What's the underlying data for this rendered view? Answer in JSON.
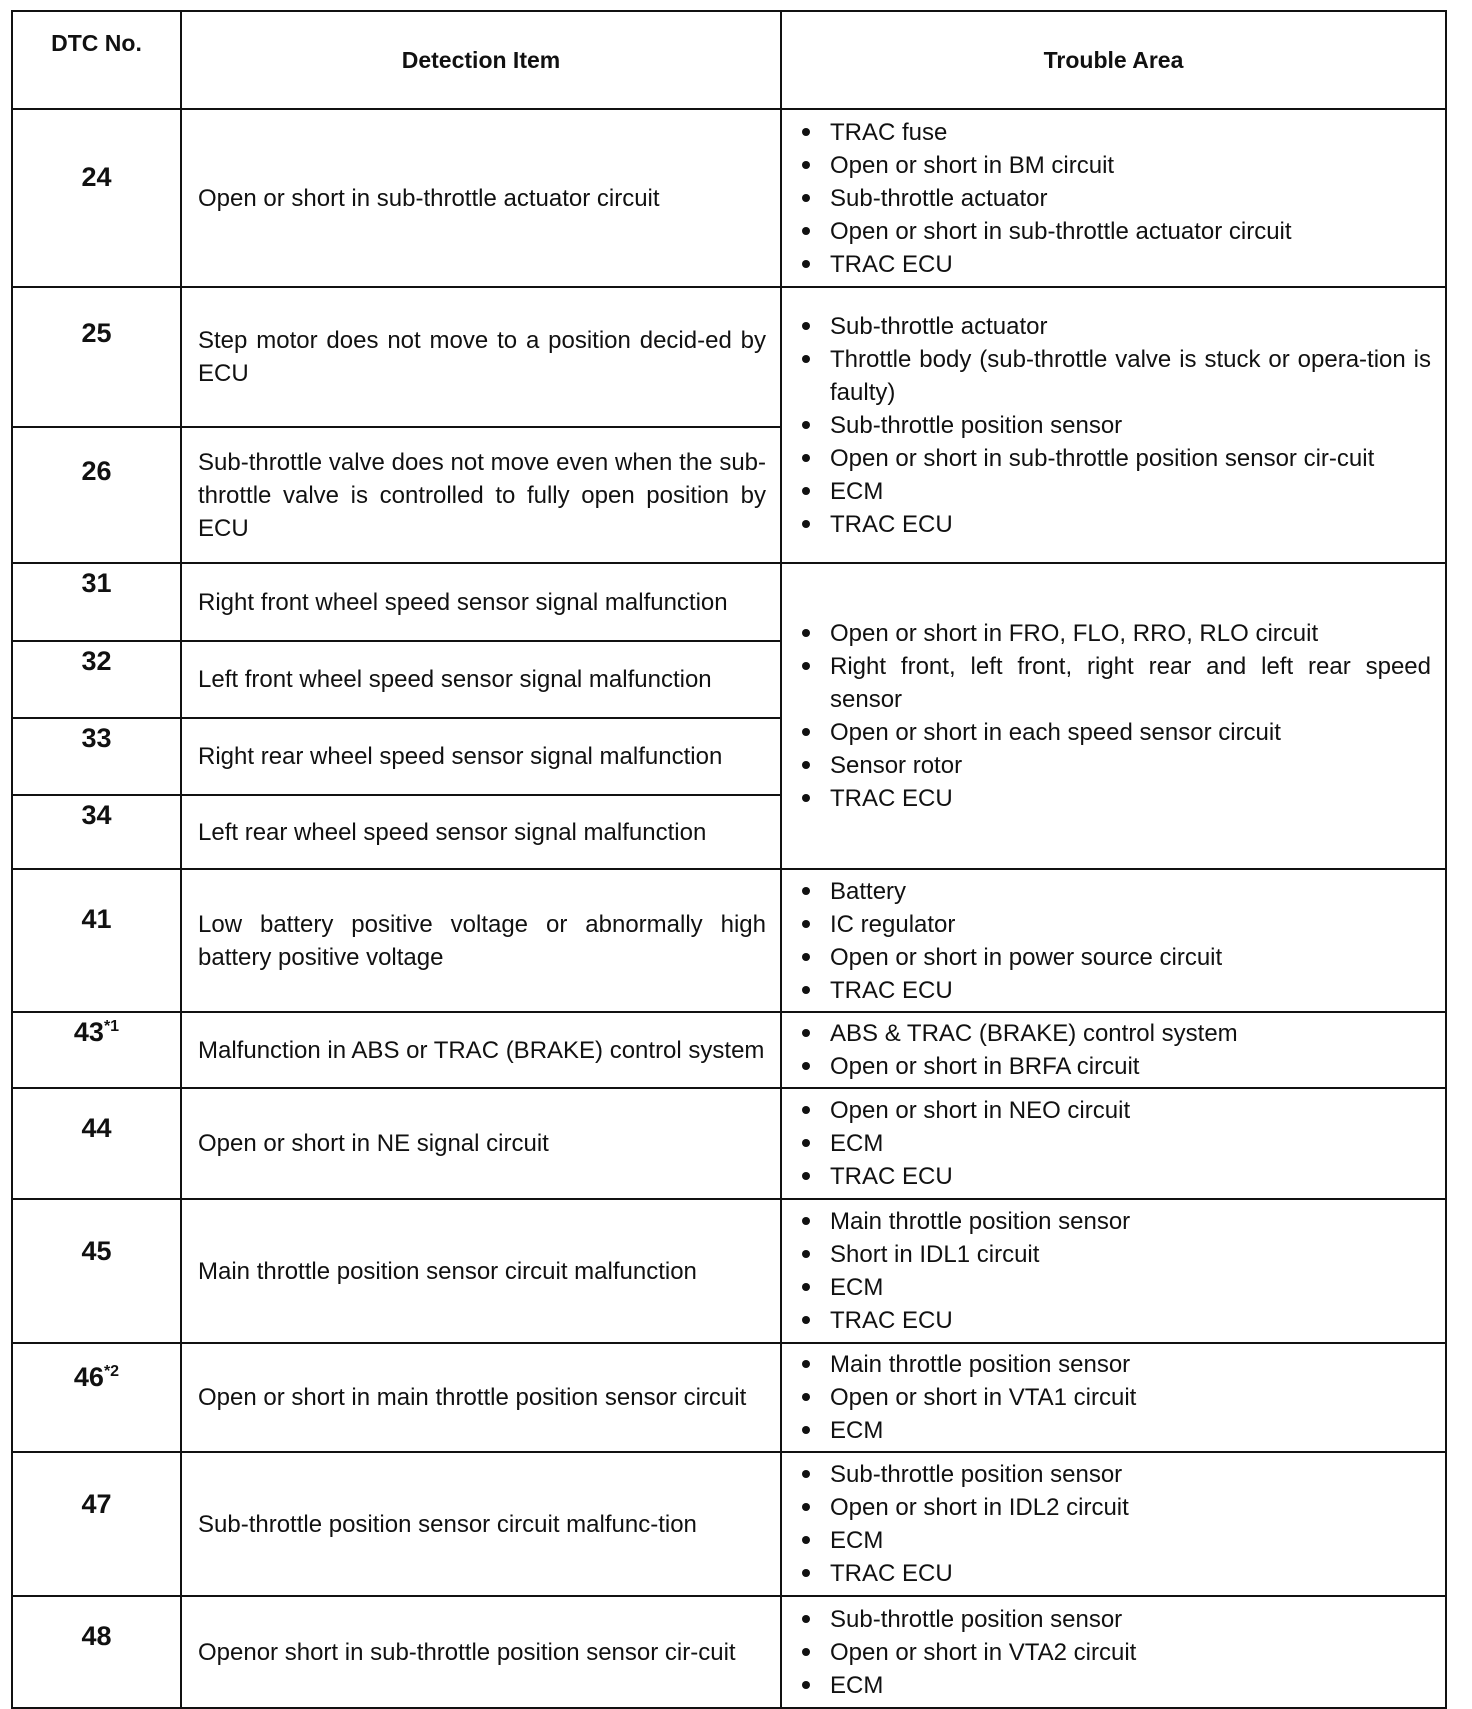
{
  "headers": {
    "dtc": "DTC No.",
    "item": "Detection Item",
    "area": "Trouble Area"
  },
  "rows": [
    {
      "dtc": "24",
      "item": "Open or short in sub-throttle actuator circuit",
      "area": [
        "TRAC fuse",
        "Open or short in BM circuit",
        "Sub-throttle actuator",
        "Open or short in sub-throttle actuator circuit",
        "TRAC ECU"
      ],
      "area_rows": 1
    },
    {
      "dtc": "25",
      "item": "Step motor does not move to a position decid-ed by ECU",
      "area": [
        "Sub-throttle actuator",
        "Throttle body (sub-throttle valve is stuck or opera-tion is faulty)",
        "Sub-throttle position sensor",
        "Open or short in sub-throttle position sensor cir-cuit",
        "ECM",
        "TRAC ECU"
      ],
      "area_rows": 2
    },
    {
      "dtc": "26",
      "item": "Sub-throttle valve does not move even when the sub-throttle valve is controlled to fully open position by ECU"
    },
    {
      "dtc": "31",
      "item": "Right front wheel speed sensor signal malfunction",
      "area": [
        "Open or short in FRO, FLO, RRO, RLO circuit",
        "Right front, left front, right rear and left rear speed sensor",
        "Open or short in each speed sensor circuit",
        "Sensor rotor",
        "TRAC ECU"
      ],
      "area_rows": 4
    },
    {
      "dtc": "32",
      "item": "Left front wheel speed sensor signal malfunction"
    },
    {
      "dtc": "33",
      "item": "Right rear wheel speed sensor signal malfunction"
    },
    {
      "dtc": "34",
      "item": "Left rear wheel speed sensor signal malfunction"
    },
    {
      "dtc": "41",
      "item": "Low battery positive voltage or abnormally high battery positive voltage",
      "area": [
        "Battery",
        "IC regulator",
        "Open or short in power source circuit",
        "TRAC ECU"
      ],
      "area_rows": 1
    },
    {
      "dtc": "43",
      "note": "*1",
      "item": "Malfunction in ABS or TRAC (BRAKE) control system",
      "area": [
        "ABS & TRAC (BRAKE) control system",
        "Open or short in BRFA circuit"
      ],
      "area_rows": 1
    },
    {
      "dtc": "44",
      "item": "Open or short in NE signal circuit",
      "area": [
        "Open or short in NEO circuit",
        "ECM",
        "TRAC ECU"
      ],
      "area_rows": 1
    },
    {
      "dtc": "45",
      "item": "Main throttle position sensor circuit malfunction",
      "area": [
        "Main throttle position sensor",
        "Short in IDL1 circuit",
        "ECM",
        "TRAC ECU"
      ],
      "area_rows": 1
    },
    {
      "dtc": "46",
      "note": "*2",
      "item": "Open or short in main throttle position sensor circuit",
      "area": [
        "Main throttle position sensor",
        "Open or short in VTA1 circuit",
        "ECM"
      ],
      "area_rows": 1
    },
    {
      "dtc": "47",
      "item": "Sub-throttle position sensor circuit malfunc-tion",
      "area": [
        "Sub-throttle position sensor",
        "Open or short in IDL2 circuit",
        "ECM",
        "TRAC ECU"
      ],
      "area_rows": 1
    },
    {
      "dtc": "48",
      "item": "Openor short in sub-throttle position sensor cir-cuit",
      "area": [
        "Sub-throttle position sensor",
        "Open or short in VTA2 circuit",
        "ECM"
      ],
      "area_rows": 1
    }
  ]
}
